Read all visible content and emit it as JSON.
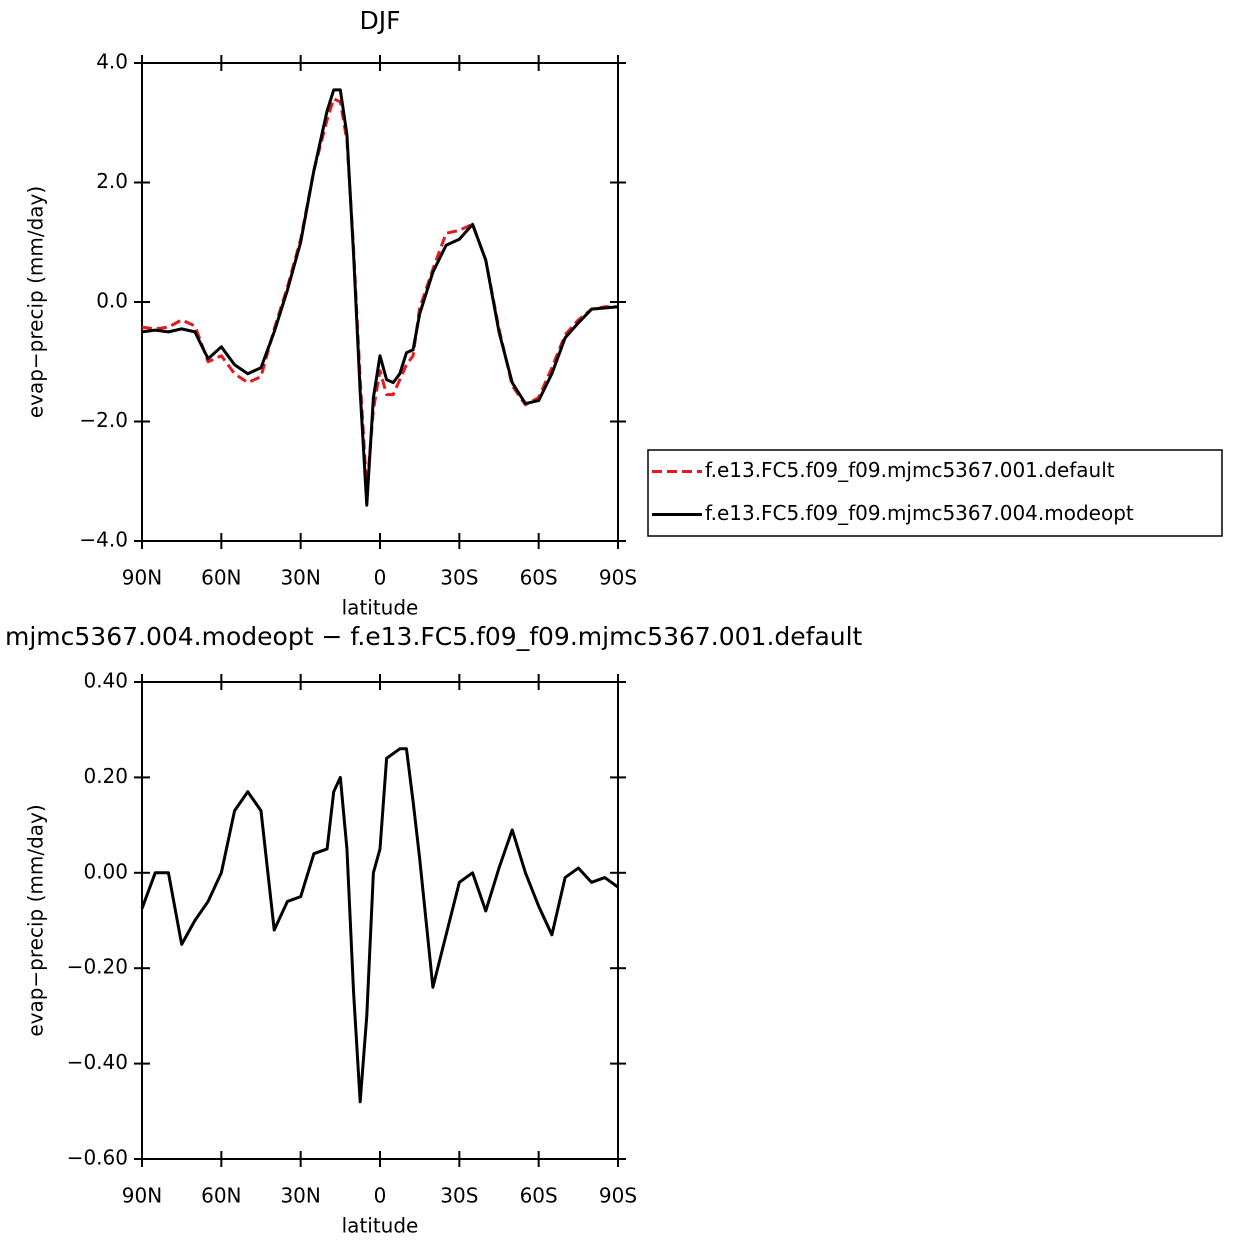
{
  "chart_data": [
    {
      "type": "line",
      "title": "DJF",
      "xlabel": "latitude",
      "ylabel": "evap−precip (mm/day)",
      "x": [
        90,
        85,
        80,
        75,
        70,
        65,
        60,
        55,
        50,
        45,
        40,
        35,
        30,
        25,
        20,
        17.5,
        15,
        12.5,
        10,
        7.5,
        5,
        2.5,
        0,
        -2.5,
        -5,
        -7.5,
        -10,
        -12.5,
        -15,
        -20,
        -25,
        -30,
        -35,
        -40,
        -45,
        -50,
        -55,
        -60,
        -65,
        -70,
        -75,
        -80,
        -85,
        -90
      ],
      "series": [
        {
          "name": "f.e13.FC5.f09_f09.mjmc5367.001.default",
          "color": "#e41a1c",
          "linestyle": "dashed",
          "values": [
            -0.42,
            -0.45,
            -0.42,
            -0.3,
            -0.4,
            -1.0,
            -0.9,
            -1.2,
            -1.35,
            -1.25,
            -0.45,
            0.25,
            1.05,
            2.2,
            3.05,
            3.4,
            3.35,
            2.7,
            0.9,
            -1.3,
            -3.15,
            -1.8,
            -1.15,
            -1.55,
            -1.55,
            -1.3,
            -1.05,
            -0.9,
            -0.1,
            0.55,
            1.15,
            1.2,
            1.3,
            0.7,
            -0.45,
            -1.4,
            -1.72,
            -1.6,
            -1.1,
            -0.55,
            -0.3,
            -0.12,
            -0.08,
            -0.08
          ]
        },
        {
          "name": "f.e13.FC5.f09_f09.mjmc5367.004.modeopt",
          "color": "#000000",
          "linestyle": "solid",
          "values": [
            -0.5,
            -0.47,
            -0.5,
            -0.45,
            -0.5,
            -0.95,
            -0.75,
            -1.05,
            -1.2,
            -1.1,
            -0.5,
            0.2,
            1.0,
            2.2,
            3.2,
            3.55,
            3.55,
            2.8,
            0.8,
            -1.5,
            -3.4,
            -1.6,
            -0.9,
            -1.3,
            -1.35,
            -1.2,
            -0.85,
            -0.8,
            -0.2,
            0.5,
            0.95,
            1.05,
            1.3,
            0.7,
            -0.5,
            -1.35,
            -1.7,
            -1.65,
            -1.2,
            -0.6,
            -0.35,
            -0.12,
            -0.1,
            -0.08
          ]
        }
      ],
      "xlim": [
        90,
        -90
      ],
      "xticks": [
        {
          "value": 90,
          "label": "90N"
        },
        {
          "value": 60,
          "label": "60N"
        },
        {
          "value": 30,
          "label": "30N"
        },
        0,
        {
          "value": -30,
          "label": "30S"
        },
        {
          "value": -60,
          "label": "60S"
        },
        {
          "value": -90,
          "label": "90S"
        }
      ],
      "ylim": [
        -4,
        4
      ],
      "yticks": [
        {
          "value": -4,
          "label": "−4.0"
        },
        {
          "value": -2,
          "label": "−2.0"
        },
        {
          "value": 0,
          "label": "0.0"
        },
        {
          "value": 2,
          "label": "2.0"
        },
        {
          "value": 4,
          "label": "4.0"
        }
      ],
      "legend": "right"
    },
    {
      "type": "line",
      "title": "mjmc5367.004.modeopt − f.e13.FC5.f09_f09.mjmc5367.001.default",
      "xlabel": "latitude",
      "ylabel": "evap−precip (mm/day)",
      "x": [
        90,
        85,
        80,
        75,
        70,
        65,
        60,
        55,
        50,
        45,
        40,
        35,
        30,
        25,
        20,
        17.5,
        15,
        12.5,
        10,
        7.5,
        5,
        2.5,
        0,
        -2.5,
        -5,
        -7.5,
        -10,
        -12.5,
        -15,
        -20,
        -25,
        -30,
        -35,
        -40,
        -45,
        -50,
        -55,
        -60,
        -65,
        -70,
        -75,
        -80,
        -85,
        -90
      ],
      "series": [
        {
          "color": "#000000",
          "linestyle": "solid",
          "values": [
            -0.075,
            0.0,
            0.0,
            -0.15,
            -0.1,
            -0.06,
            0.0,
            0.13,
            0.17,
            0.13,
            -0.12,
            -0.06,
            -0.05,
            0.04,
            0.05,
            0.17,
            0.2,
            0.05,
            -0.25,
            -0.48,
            -0.3,
            0.0,
            0.05,
            0.24,
            0.25,
            0.26,
            0.26,
            0.15,
            0.03,
            -0.24,
            -0.13,
            -0.02,
            0.0,
            -0.08,
            0.01,
            0.09,
            0.0,
            -0.07,
            -0.13,
            -0.01,
            0.01,
            -0.02,
            -0.01,
            -0.03
          ]
        }
      ],
      "xlim": [
        90,
        -90
      ],
      "xticks": [
        {
          "value": 90,
          "label": "90N"
        },
        {
          "value": 60,
          "label": "60N"
        },
        {
          "value": 30,
          "label": "30N"
        },
        0,
        {
          "value": -30,
          "label": "30S"
        },
        {
          "value": -60,
          "label": "60S"
        },
        {
          "value": -90,
          "label": "90S"
        }
      ],
      "ylim": [
        -0.6,
        0.4
      ],
      "yticks": [
        {
          "value": -0.6,
          "label": "−0.60"
        },
        {
          "value": -0.4,
          "label": "−0.40"
        },
        {
          "value": -0.2,
          "label": "−0.20"
        },
        {
          "value": 0,
          "label": "0.00"
        },
        {
          "value": 0.2,
          "label": "0.20"
        },
        {
          "value": 0.4,
          "label": "0.40"
        }
      ]
    }
  ]
}
